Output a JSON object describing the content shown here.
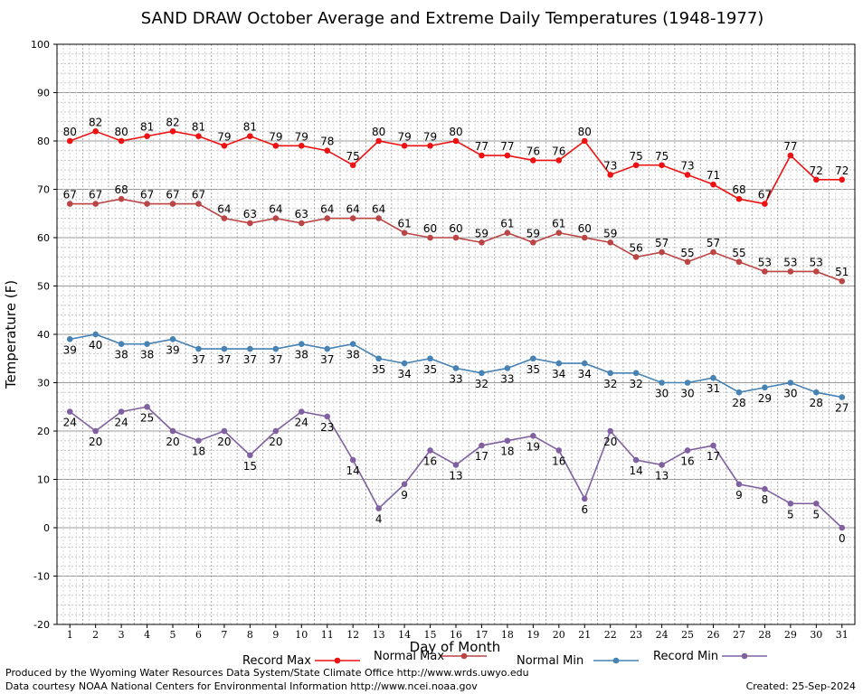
{
  "chart_data": {
    "type": "line",
    "title": "SAND DRAW October Average and Extreme Daily Temperatures (1948-1977)",
    "xlabel": "Day of Month",
    "ylabel": "Temperature (F)",
    "ylim": [
      -20,
      100
    ],
    "yticks": [
      -20,
      -10,
      0,
      10,
      20,
      30,
      40,
      50,
      60,
      70,
      80,
      90,
      100
    ],
    "x": [
      1,
      2,
      3,
      4,
      5,
      6,
      7,
      8,
      9,
      10,
      11,
      12,
      13,
      14,
      15,
      16,
      17,
      18,
      19,
      20,
      21,
      22,
      23,
      24,
      25,
      26,
      27,
      28,
      29,
      30,
      31
    ],
    "grid": true,
    "legend_position": "bottom",
    "series": [
      {
        "name": "Record Max",
        "color": "#ee1111",
        "label_position": "above",
        "values": [
          80,
          82,
          80,
          81,
          82,
          81,
          79,
          81,
          79,
          79,
          78,
          75,
          80,
          79,
          79,
          80,
          77,
          77,
          76,
          76,
          80,
          73,
          75,
          75,
          73,
          71,
          68,
          67,
          77,
          72,
          72
        ]
      },
      {
        "name": "Normal Max",
        "color": "#bb4444",
        "label_position": "above",
        "values": [
          67,
          67,
          68,
          67,
          67,
          67,
          64,
          63,
          64,
          63,
          64,
          64,
          64,
          61,
          60,
          60,
          59,
          61,
          59,
          61,
          60,
          59,
          56,
          57,
          55,
          57,
          55,
          53,
          53,
          53,
          51
        ]
      },
      {
        "name": "Normal Min",
        "color": "#4682b4",
        "label_position": "below",
        "values": [
          39,
          40,
          38,
          38,
          39,
          37,
          37,
          37,
          37,
          38,
          37,
          38,
          35,
          34,
          35,
          33,
          32,
          33,
          35,
          34,
          34,
          32,
          32,
          30,
          30,
          31,
          28,
          29,
          30,
          28,
          27
        ]
      },
      {
        "name": "Record Min",
        "color": "#8060a0",
        "label_position": "below",
        "values": [
          24,
          20,
          24,
          25,
          20,
          18,
          20,
          15,
          20,
          24,
          23,
          14,
          4,
          9,
          16,
          13,
          17,
          18,
          19,
          16,
          6,
          20,
          14,
          13,
          16,
          17,
          9,
          8,
          5,
          5,
          0
        ]
      }
    ]
  },
  "footer": {
    "produced_by": "Produced by the Wyoming Water Resources Data System/State Climate Office http://www.wrds.uwyo.edu",
    "courtesy": "Data courtesy NOAA National Centers for Environmental Information http://www.ncei.noaa.gov",
    "created": "Created:  25-Sep-2024"
  }
}
